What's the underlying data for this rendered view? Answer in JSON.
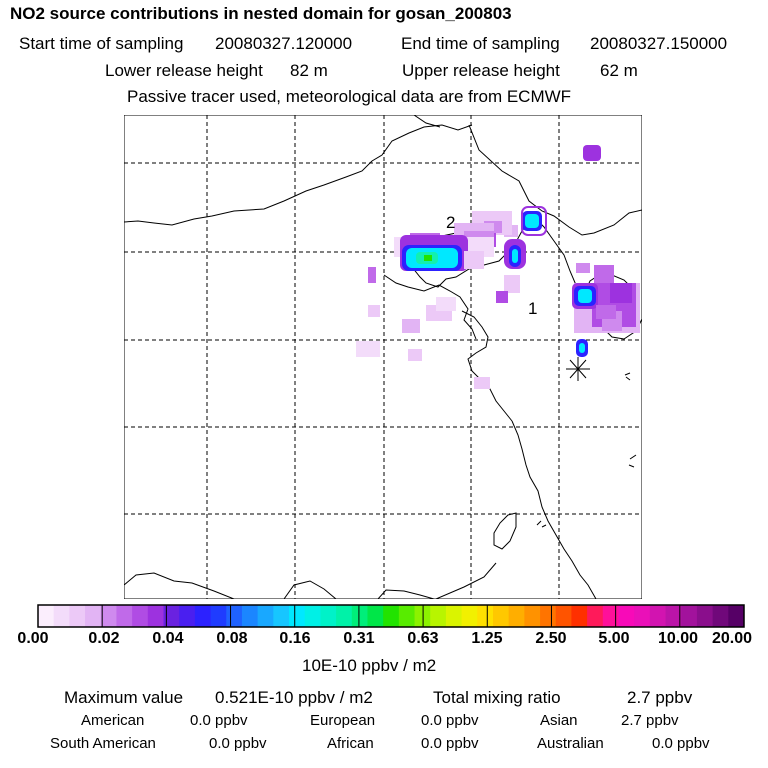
{
  "header": {
    "title": "NO2 source contributions in nested domain for gosan_200803",
    "start_label": "Start time of sampling",
    "start_value": "20080327.120000",
    "end_label": "End time of sampling",
    "end_value": "20080327.150000",
    "lower_label": "Lower release height",
    "lower_value": "82 m",
    "upper_label": "Upper release height",
    "upper_value": "62 m",
    "note": "Passive tracer used, meteorological data are from ECMWF"
  },
  "map": {
    "label_1": "1",
    "label_2": "2",
    "receptor_marker": "asterisk-icon",
    "colors": {
      "light": "#e9c6f5",
      "pale": "#f3dcfa",
      "violet": "#b02ee0",
      "purple": "#8a1fd8",
      "blue": "#1f3cff",
      "cyan": "#00e8ff",
      "teal": "#12f0b0"
    }
  },
  "colorbar": {
    "colors": [
      "#fbeefd",
      "#f3dcfa",
      "#ecc9f7",
      "#e2b4f4",
      "#cf8aee",
      "#c06ae9",
      "#b04ce4",
      "#9d32df",
      "#6a22e0",
      "#4a1ff0",
      "#2c22ff",
      "#1f3cff",
      "#1f62ff",
      "#1b86ff",
      "#19a8ff",
      "#17c6ff",
      "#00e8ff",
      "#00f0e6",
      "#00f2c8",
      "#00f2a8",
      "#00ee7a",
      "#00e648",
      "#22e300",
      "#58ec00",
      "#8cf200",
      "#b8f500",
      "#daf400",
      "#f2f000",
      "#ffe000",
      "#ffc800",
      "#ffae00",
      "#ff9200",
      "#ff7400",
      "#ff5400",
      "#ff3000",
      "#ff1a5a",
      "#ff109a",
      "#f80ab8",
      "#ea10b8",
      "#d214b0",
      "#bb14a8",
      "#a2129c",
      "#8a0e8c",
      "#70087a",
      "#560066"
    ],
    "tick_labels": [
      "0.00",
      "0.02",
      "0.04",
      "0.08",
      "0.16",
      "0.31",
      "0.63",
      "1.25",
      "2.50",
      "5.00",
      "10.00",
      "20.00"
    ],
    "unit": "10E-10 ppbv / m2"
  },
  "summary": {
    "max_label": "Maximum value",
    "max_value": "0.521E-10 ppbv / m2",
    "total_label": "Total mixing ratio",
    "total_value": "2.7 ppbv",
    "american_label": "American",
    "american_value": "0.0 ppbv",
    "european_label": "European",
    "european_value": "0.0 ppbv",
    "asian_label": "Asian",
    "asian_value": "2.7 ppbv",
    "south_american_label": "South American",
    "south_american_value": "0.0 ppbv",
    "african_label": "African",
    "african_value": "0.0 ppbv",
    "australian_label": "Australian",
    "australian_value": "0.0 ppbv"
  }
}
